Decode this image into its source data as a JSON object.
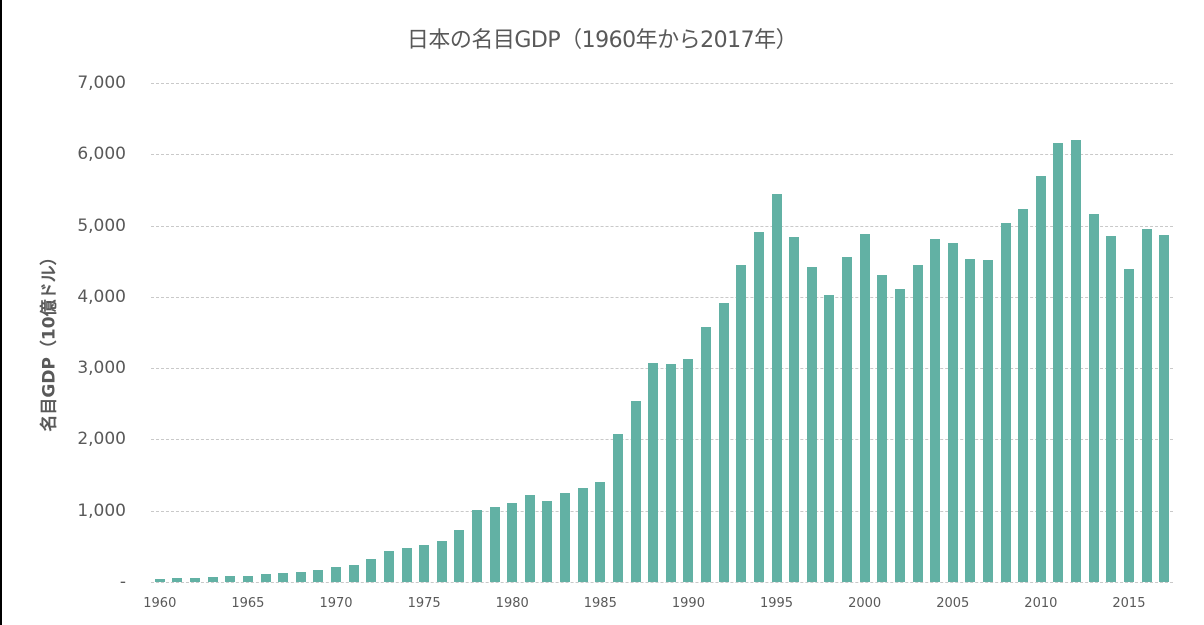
{
  "chart_data": {
    "type": "bar",
    "title": "日本の名目GDP（1960年から2017年）",
    "xlabel": "",
    "ylabel": "名目GDP（10億ドル）",
    "ylim": [
      0,
      7000
    ],
    "yticks": [
      0,
      1000,
      2000,
      3000,
      4000,
      5000,
      6000,
      7000
    ],
    "ytick_labels": [
      "-",
      "1,000",
      "2,000",
      "3,000",
      "4,000",
      "5,000",
      "6,000",
      "7,000"
    ],
    "xtick_labels": [
      "1960",
      "1965",
      "1970",
      "1975",
      "1980",
      "1985",
      "1990",
      "1995",
      "2000",
      "2005",
      "2010",
      "2015"
    ],
    "grid": true,
    "legend": null,
    "bar_color": "#62b1a4",
    "categories": [
      1960,
      1961,
      1962,
      1963,
      1964,
      1965,
      1966,
      1967,
      1968,
      1969,
      1970,
      1971,
      1972,
      1973,
      1974,
      1975,
      1976,
      1977,
      1978,
      1979,
      1980,
      1981,
      1982,
      1983,
      1984,
      1985,
      1986,
      1987,
      1988,
      1989,
      1990,
      1991,
      1992,
      1993,
      1994,
      1995,
      1996,
      1997,
      1998,
      1999,
      2000,
      2001,
      2002,
      2003,
      2004,
      2005,
      2006,
      2007,
      2008,
      2009,
      2010,
      2011,
      2012,
      2013,
      2014,
      2015,
      2016,
      2017
    ],
    "values": [
      44,
      53,
      61,
      69,
      82,
      91,
      106,
      124,
      147,
      172,
      212,
      240,
      318,
      432,
      479,
      521,
      576,
      725,
      1014,
      1055,
      1105,
      1218,
      1134,
      1243,
      1318,
      1399,
      2079,
      2533,
      3071,
      3054,
      3133,
      3584,
      3909,
      4454,
      4907,
      5449,
      4834,
      4415,
      4033,
      4563,
      4888,
      4304,
      4116,
      4446,
      4815,
      4755,
      4530,
      4515,
      5038,
      5231,
      5700,
      6157,
      6203,
      5156,
      4850,
      4395,
      4949,
      4872
    ]
  }
}
